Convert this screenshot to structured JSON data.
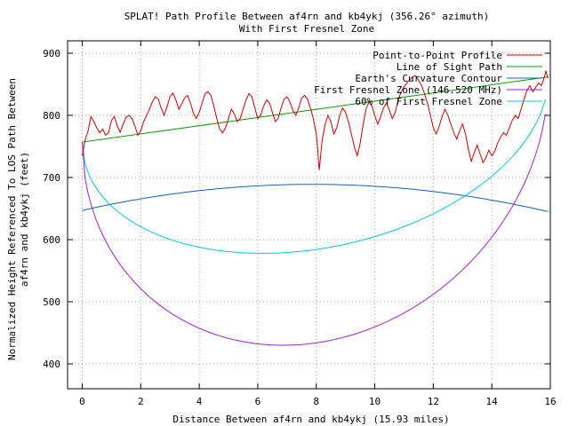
{
  "chart_data": {
    "type": "line",
    "title": "SPLAT! Path Profile Between af4rn and kb4ykj (356.26° azimuth)",
    "subtitle": "With First Fresnel Zone",
    "xlabel": "Distance Between af4rn and kb4ykj (15.93 miles)",
    "ylabel_line1": "Normalized Height Referenced To LOS Path Between",
    "ylabel_line2": "af4rn and kb4ykj (feet)",
    "xlim": [
      -0.5,
      16
    ],
    "ylim": [
      360,
      920
    ],
    "xticks": [
      0,
      2,
      4,
      6,
      8,
      10,
      12,
      14,
      16
    ],
    "yticks": [
      400,
      500,
      600,
      700,
      800,
      900
    ],
    "grid": true,
    "legend_position": "top-right",
    "x_end": 15.93,
    "series": [
      {
        "name": "Point-to-Point Profile",
        "color": "#cc0000",
        "points": [
          [
            0.0,
            735
          ],
          [
            0.1,
            760
          ],
          [
            0.2,
            775
          ],
          [
            0.3,
            798
          ],
          [
            0.4,
            790
          ],
          [
            0.5,
            780
          ],
          [
            0.6,
            772
          ],
          [
            0.7,
            778
          ],
          [
            0.8,
            768
          ],
          [
            0.9,
            772
          ],
          [
            1.0,
            792
          ],
          [
            1.1,
            798
          ],
          [
            1.2,
            783
          ],
          [
            1.3,
            773
          ],
          [
            1.4,
            786
          ],
          [
            1.5,
            797
          ],
          [
            1.6,
            800
          ],
          [
            1.7,
            795
          ],
          [
            1.8,
            783
          ],
          [
            1.9,
            768
          ],
          [
            2.0,
            775
          ],
          [
            2.1,
            790
          ],
          [
            2.2,
            800
          ],
          [
            2.3,
            810
          ],
          [
            2.4,
            822
          ],
          [
            2.5,
            830
          ],
          [
            2.6,
            826
          ],
          [
            2.7,
            812
          ],
          [
            2.8,
            800
          ],
          [
            2.9,
            814
          ],
          [
            3.0,
            830
          ],
          [
            3.1,
            836
          ],
          [
            3.2,
            825
          ],
          [
            3.3,
            810
          ],
          [
            3.4,
            818
          ],
          [
            3.5,
            828
          ],
          [
            3.6,
            832
          ],
          [
            3.7,
            820
          ],
          [
            3.8,
            804
          ],
          [
            3.9,
            795
          ],
          [
            4.0,
            805
          ],
          [
            4.1,
            820
          ],
          [
            4.2,
            835
          ],
          [
            4.3,
            838
          ],
          [
            4.4,
            832
          ],
          [
            4.5,
            815
          ],
          [
            4.6,
            795
          ],
          [
            4.7,
            778
          ],
          [
            4.8,
            772
          ],
          [
            4.9,
            780
          ],
          [
            5.0,
            795
          ],
          [
            5.1,
            810
          ],
          [
            5.2,
            802
          ],
          [
            5.3,
            790
          ],
          [
            5.4,
            795
          ],
          [
            5.5,
            810
          ],
          [
            5.6,
            825
          ],
          [
            5.7,
            835
          ],
          [
            5.8,
            830
          ],
          [
            5.9,
            812
          ],
          [
            6.0,
            795
          ],
          [
            6.1,
            800
          ],
          [
            6.2,
            815
          ],
          [
            6.3,
            825
          ],
          [
            6.4,
            820
          ],
          [
            6.5,
            805
          ],
          [
            6.6,
            790
          ],
          [
            6.7,
            795
          ],
          [
            6.8,
            812
          ],
          [
            6.9,
            826
          ],
          [
            7.0,
            830
          ],
          [
            7.1,
            822
          ],
          [
            7.2,
            808
          ],
          [
            7.3,
            800
          ],
          [
            7.4,
            812
          ],
          [
            7.5,
            828
          ],
          [
            7.6,
            832
          ],
          [
            7.7,
            826
          ],
          [
            7.8,
            812
          ],
          [
            7.9,
            795
          ],
          [
            8.0,
            770
          ],
          [
            8.05,
            745
          ],
          [
            8.1,
            712
          ],
          [
            8.15,
            735
          ],
          [
            8.2,
            760
          ],
          [
            8.3,
            785
          ],
          [
            8.4,
            800
          ],
          [
            8.5,
            790
          ],
          [
            8.6,
            770
          ],
          [
            8.7,
            780
          ],
          [
            8.8,
            800
          ],
          [
            8.9,
            812
          ],
          [
            9.0,
            805
          ],
          [
            9.1,
            790
          ],
          [
            9.2,
            770
          ],
          [
            9.3,
            750
          ],
          [
            9.4,
            735
          ],
          [
            9.5,
            755
          ],
          [
            9.6,
            785
          ],
          [
            9.7,
            810
          ],
          [
            9.8,
            822
          ],
          [
            9.9,
            815
          ],
          [
            10.0,
            800
          ],
          [
            10.1,
            786
          ],
          [
            10.2,
            798
          ],
          [
            10.3,
            812
          ],
          [
            10.4,
            820
          ],
          [
            10.5,
            808
          ],
          [
            10.6,
            795
          ],
          [
            10.7,
            805
          ],
          [
            10.8,
            825
          ],
          [
            10.9,
            838
          ],
          [
            11.0,
            846
          ],
          [
            11.1,
            852
          ],
          [
            11.2,
            858
          ],
          [
            11.3,
            862
          ],
          [
            11.4,
            864
          ],
          [
            11.5,
            856
          ],
          [
            11.6,
            848
          ],
          [
            11.7,
            835
          ],
          [
            11.8,
            820
          ],
          [
            11.9,
            800
          ],
          [
            12.0,
            780
          ],
          [
            12.1,
            770
          ],
          [
            12.2,
            782
          ],
          [
            12.3,
            798
          ],
          [
            12.4,
            810
          ],
          [
            12.5,
            800
          ],
          [
            12.6,
            786
          ],
          [
            12.7,
            772
          ],
          [
            12.8,
            762
          ],
          [
            12.9,
            775
          ],
          [
            13.0,
            786
          ],
          [
            13.1,
            770
          ],
          [
            13.2,
            745
          ],
          [
            13.3,
            726
          ],
          [
            13.4,
            740
          ],
          [
            13.5,
            752
          ],
          [
            13.6,
            738
          ],
          [
            13.7,
            724
          ],
          [
            13.8,
            732
          ],
          [
            13.9,
            744
          ],
          [
            14.0,
            735
          ],
          [
            14.1,
            742
          ],
          [
            14.2,
            756
          ],
          [
            14.3,
            765
          ],
          [
            14.4,
            772
          ],
          [
            14.5,
            768
          ],
          [
            14.6,
            780
          ],
          [
            14.7,
            792
          ],
          [
            14.8,
            800
          ],
          [
            14.9,
            795
          ],
          [
            15.0,
            810
          ],
          [
            15.1,
            826
          ],
          [
            15.2,
            840
          ],
          [
            15.3,
            848
          ],
          [
            15.4,
            838
          ],
          [
            15.5,
            845
          ],
          [
            15.6,
            852
          ],
          [
            15.7,
            848
          ],
          [
            15.8,
            862
          ],
          [
            15.85,
            872
          ],
          [
            15.9,
            862
          ],
          [
            15.93,
            860
          ]
        ]
      },
      {
        "name": "Line of Sight Path",
        "color": "#00a000",
        "points": [
          [
            0,
            757
          ],
          [
            15.93,
            862
          ]
        ]
      },
      {
        "name": "Earth's Curvature Contour",
        "color": "#1060c0",
        "curve": "arc",
        "y_start": 647,
        "y_peak": 689,
        "y_end": 645
      },
      {
        "name": "First Fresnel Zone (146.520 MHz)",
        "color": "#a020d0",
        "curve": "fresnel",
        "fraction": 1.0
      },
      {
        "name": "60% of First Fresnel Zone",
        "color": "#00c8d8",
        "curve": "fresnel",
        "fraction": 0.6
      }
    ]
  }
}
